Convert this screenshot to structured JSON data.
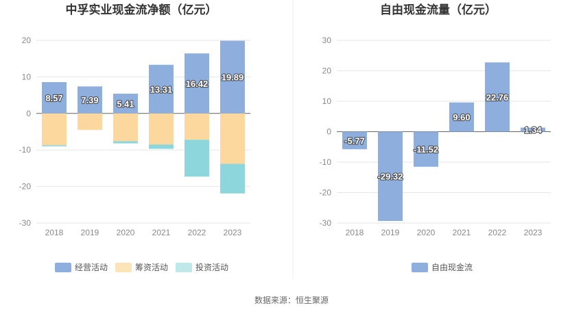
{
  "source": "数据来源：恒生聚源",
  "colors": {
    "operating": "#8eaedd",
    "financing": "#fdd89e",
    "investing": "#8dd6db",
    "investing_legend": "#bfe8ea",
    "fcf": "#8eaedd",
    "grid": "#e6e6e6",
    "axis": "#666666"
  },
  "chart_data": [
    {
      "type": "bar",
      "stacked": true,
      "title": "中孚实业现金流净额（亿元）",
      "categories": [
        "2018",
        "2019",
        "2020",
        "2021",
        "2022",
        "2023"
      ],
      "ylim": [
        -30,
        20
      ],
      "yticks": [
        "20",
        "10",
        "0",
        "-10",
        "-20",
        "-30"
      ],
      "grid": true,
      "legend_position": "bottom",
      "series": [
        {
          "name": "经营活动",
          "values": [
            8.57,
            7.39,
            5.41,
            13.31,
            16.42,
            19.89
          ],
          "labels": [
            "8.57",
            "7.39",
            "5.41",
            "13.31",
            "16.42",
            "19.89"
          ]
        },
        {
          "name": "筹资活动",
          "values": [
            -8.7,
            -4.5,
            -7.6,
            -8.5,
            -7.2,
            -13.8
          ]
        },
        {
          "name": "投资活动",
          "values": [
            -0.3,
            0,
            -0.6,
            -1.2,
            -10.1,
            -8.1
          ]
        }
      ]
    },
    {
      "type": "bar",
      "title": "自由现金流量（亿元）",
      "categories": [
        "2018",
        "2019",
        "2020",
        "2021",
        "2022",
        "2023"
      ],
      "ylim": [
        -30,
        30
      ],
      "yticks": [
        "30",
        "20",
        "10",
        "0",
        "-10",
        "-20",
        "-30"
      ],
      "grid": true,
      "legend_position": "bottom",
      "series": [
        {
          "name": "自由现金流",
          "values": [
            -5.77,
            -29.32,
            -11.52,
            9.6,
            22.76,
            1.34
          ],
          "labels": [
            "-5.77",
            "-29.32",
            "-11.52",
            "9.60",
            "22.76",
            "1.34"
          ]
        }
      ]
    }
  ]
}
